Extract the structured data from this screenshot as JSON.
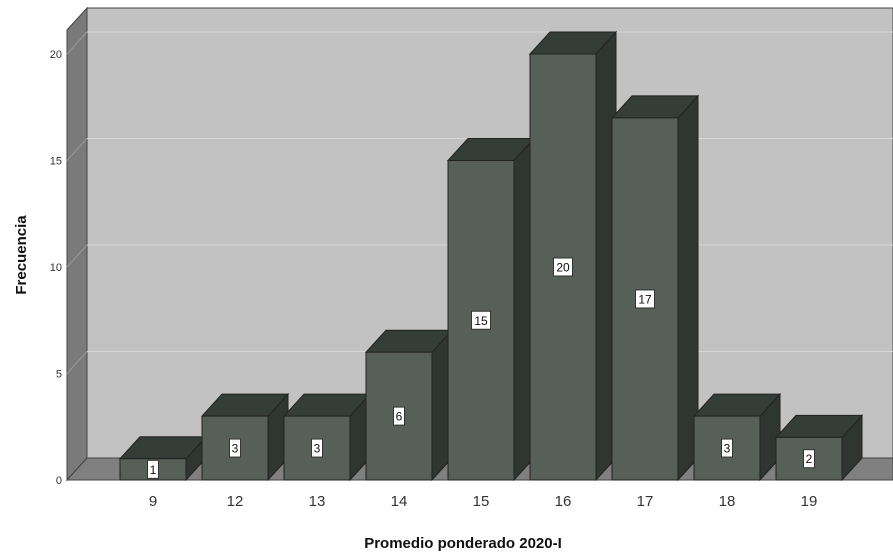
{
  "chart_data": {
    "type": "bar",
    "style": "3d",
    "categories": [
      "9",
      "12",
      "13",
      "14",
      "15",
      "16",
      "17",
      "18",
      "19"
    ],
    "values": [
      1,
      3,
      3,
      6,
      15,
      20,
      17,
      3,
      2
    ],
    "data_labels": [
      "1",
      "3",
      "3",
      "6",
      "15",
      "20",
      "17",
      "3",
      "2"
    ],
    "xlabel": "Promedio ponderado 2020-I",
    "ylabel": "Frecuencia",
    "ylim": [
      0,
      20
    ],
    "yticks": [
      "0",
      "5",
      "10",
      "15",
      "20"
    ],
    "grid": true,
    "colors": {
      "bar_front": "#566059",
      "bar_top": "#353d38",
      "bar_side": "#2f3632",
      "wall": "#c2c2c2",
      "left_wall": "#7a7a7a",
      "floor": "#808080",
      "gridline": "#d6d6d6"
    }
  }
}
